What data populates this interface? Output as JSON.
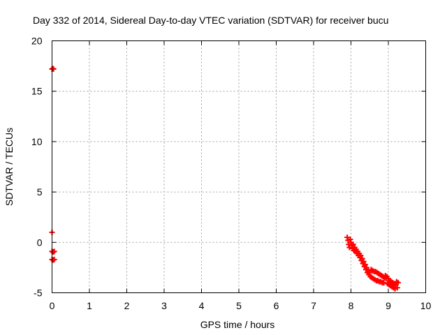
{
  "chart_data": {
    "type": "scatter",
    "title": "Day 332 of 2014, Sidereal Day-to-day VTEC variation (SDTVAR) for receiver bucu",
    "xlabel": "GPS time / hours",
    "ylabel": "SDTVAR / TECUs",
    "xlim": [
      0,
      10
    ],
    "ylim": [
      -5,
      20
    ],
    "x_ticks": [
      "0",
      "1",
      "2",
      "3",
      "4",
      "5",
      "6",
      "7",
      "8",
      "9",
      "10"
    ],
    "y_ticks": [
      "-5",
      "0",
      "5",
      "10",
      "15",
      "20"
    ],
    "grid": true,
    "series": [
      {
        "name": "SDTVAR",
        "color": "#ff0000",
        "marker": "plus",
        "points": [
          [
            0.0,
            17.2
          ],
          [
            0.02,
            17.25
          ],
          [
            0.04,
            17.2
          ],
          [
            0.0,
            1.0
          ],
          [
            0.0,
            -0.9
          ],
          [
            0.03,
            -0.95
          ],
          [
            0.06,
            -0.9
          ],
          [
            0.0,
            -1.7
          ],
          [
            0.03,
            -1.75
          ],
          [
            0.06,
            -1.7
          ],
          [
            7.9,
            0.5
          ],
          [
            7.92,
            0.2
          ],
          [
            7.94,
            -0.2
          ],
          [
            7.96,
            -0.5
          ],
          [
            7.98,
            0.3
          ],
          [
            8.0,
            0.0
          ],
          [
            8.02,
            -0.3
          ],
          [
            8.04,
            -0.6
          ],
          [
            8.06,
            -0.2
          ],
          [
            8.08,
            -0.8
          ],
          [
            8.1,
            -0.5
          ],
          [
            8.12,
            -0.9
          ],
          [
            8.14,
            -0.7
          ],
          [
            8.16,
            -1.1
          ],
          [
            8.18,
            -0.9
          ],
          [
            8.2,
            -1.3
          ],
          [
            8.22,
            -1.1
          ],
          [
            8.24,
            -1.5
          ],
          [
            8.26,
            -1.3
          ],
          [
            8.28,
            -1.8
          ],
          [
            8.3,
            -1.6
          ],
          [
            8.32,
            -2.1
          ],
          [
            8.34,
            -1.9
          ],
          [
            8.36,
            -2.4
          ],
          [
            8.38,
            -2.2
          ],
          [
            8.4,
            -2.7
          ],
          [
            8.42,
            -2.5
          ],
          [
            8.44,
            -3.0
          ],
          [
            8.46,
            -2.8
          ],
          [
            8.48,
            -3.2
          ],
          [
            8.5,
            -3.0
          ],
          [
            8.52,
            -3.4
          ],
          [
            8.54,
            -2.7
          ],
          [
            8.56,
            -3.5
          ],
          [
            8.58,
            -2.8
          ],
          [
            8.6,
            -3.6
          ],
          [
            8.62,
            -2.9
          ],
          [
            8.64,
            -3.7
          ],
          [
            8.66,
            -2.9
          ],
          [
            8.68,
            -3.8
          ],
          [
            8.7,
            -3.0
          ],
          [
            8.72,
            -3.8
          ],
          [
            8.74,
            -3.1
          ],
          [
            8.76,
            -3.9
          ],
          [
            8.78,
            -3.2
          ],
          [
            8.8,
            -3.9
          ],
          [
            8.82,
            -3.3
          ],
          [
            8.84,
            -4.0
          ],
          [
            8.86,
            -3.4
          ],
          [
            8.88,
            -4.0
          ],
          [
            8.9,
            -3.5
          ],
          [
            8.92,
            -3.3
          ],
          [
            8.94,
            -3.6
          ],
          [
            8.96,
            -3.4
          ],
          [
            8.98,
            -4.1
          ],
          [
            9.0,
            -3.6
          ],
          [
            9.02,
            -4.2
          ],
          [
            9.04,
            -3.8
          ],
          [
            9.06,
            -4.3
          ],
          [
            9.08,
            -3.9
          ],
          [
            9.1,
            -4.4
          ],
          [
            9.12,
            -4.0
          ],
          [
            9.14,
            -4.5
          ],
          [
            9.16,
            -4.1
          ],
          [
            9.18,
            -4.6
          ],
          [
            9.2,
            -4.2
          ],
          [
            9.22,
            -3.9
          ],
          [
            9.24,
            -4.5
          ],
          [
            9.26,
            -4.0
          ]
        ]
      }
    ]
  }
}
